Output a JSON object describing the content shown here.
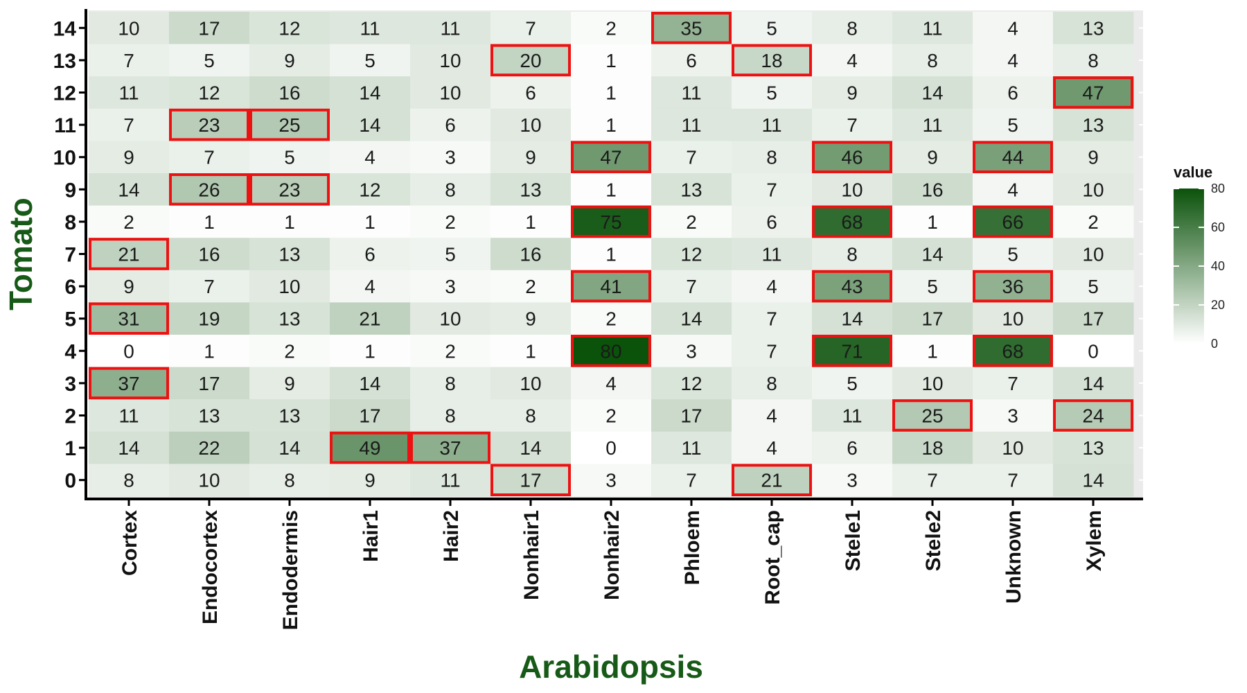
{
  "chart_data": {
    "type": "heatmap",
    "xlabel": "Arabidopsis",
    "ylabel": "Tomato",
    "x_categories": [
      "Cortex",
      "Endocortex",
      "Endodermis",
      "Hair1",
      "Hair2",
      "Nonhair1",
      "Nonhair2",
      "Phloem",
      "Root_cap",
      "Stele1",
      "Stele2",
      "Unknown",
      "Xylem"
    ],
    "y_categories": [
      "14",
      "13",
      "12",
      "11",
      "10",
      "9",
      "8",
      "7",
      "6",
      "5",
      "4",
      "3",
      "2",
      "1",
      "0"
    ],
    "values": [
      [
        10,
        17,
        12,
        11,
        11,
        7,
        2,
        35,
        5,
        8,
        11,
        4,
        13
      ],
      [
        7,
        5,
        9,
        5,
        10,
        20,
        1,
        6,
        18,
        4,
        8,
        4,
        8
      ],
      [
        11,
        12,
        16,
        14,
        10,
        6,
        1,
        11,
        5,
        9,
        14,
        6,
        47
      ],
      [
        7,
        23,
        25,
        14,
        6,
        10,
        1,
        11,
        11,
        7,
        11,
        5,
        13
      ],
      [
        9,
        7,
        5,
        4,
        3,
        9,
        47,
        7,
        8,
        46,
        9,
        44,
        9
      ],
      [
        14,
        26,
        23,
        12,
        8,
        13,
        1,
        13,
        7,
        10,
        16,
        4,
        10
      ],
      [
        2,
        1,
        1,
        1,
        2,
        1,
        75,
        2,
        6,
        68,
        1,
        66,
        2
      ],
      [
        21,
        16,
        13,
        6,
        5,
        16,
        1,
        12,
        11,
        8,
        14,
        5,
        10
      ],
      [
        9,
        7,
        10,
        4,
        3,
        2,
        41,
        7,
        4,
        43,
        5,
        36,
        5
      ],
      [
        31,
        19,
        13,
        21,
        10,
        9,
        2,
        14,
        7,
        14,
        17,
        10,
        17
      ],
      [
        0,
        1,
        2,
        1,
        2,
        1,
        80,
        3,
        7,
        71,
        1,
        68,
        0
      ],
      [
        37,
        17,
        9,
        14,
        8,
        10,
        4,
        12,
        8,
        5,
        10,
        7,
        14
      ],
      [
        11,
        13,
        13,
        17,
        8,
        8,
        2,
        17,
        4,
        11,
        25,
        3,
        24
      ],
      [
        14,
        22,
        14,
        49,
        37,
        14,
        0,
        11,
        4,
        6,
        18,
        10,
        13
      ],
      [
        8,
        10,
        8,
        9,
        11,
        17,
        3,
        7,
        21,
        3,
        7,
        7,
        14
      ]
    ],
    "highlighted": [
      [
        "14",
        "Phloem"
      ],
      [
        "13",
        "Nonhair1"
      ],
      [
        "13",
        "Root_cap"
      ],
      [
        "12",
        "Xylem"
      ],
      [
        "11",
        "Endocortex"
      ],
      [
        "11",
        "Endodermis"
      ],
      [
        "10",
        "Nonhair2"
      ],
      [
        "10",
        "Stele1"
      ],
      [
        "10",
        "Unknown"
      ],
      [
        "9",
        "Endocortex"
      ],
      [
        "9",
        "Endodermis"
      ],
      [
        "8",
        "Nonhair2"
      ],
      [
        "8",
        "Stele1"
      ],
      [
        "8",
        "Unknown"
      ],
      [
        "7",
        "Cortex"
      ],
      [
        "6",
        "Nonhair2"
      ],
      [
        "6",
        "Stele1"
      ],
      [
        "6",
        "Unknown"
      ],
      [
        "5",
        "Cortex"
      ],
      [
        "4",
        "Nonhair2"
      ],
      [
        "4",
        "Stele1"
      ],
      [
        "4",
        "Unknown"
      ],
      [
        "3",
        "Cortex"
      ],
      [
        "2",
        "Stele2"
      ],
      [
        "2",
        "Xylem"
      ],
      [
        "1",
        "Hair1"
      ],
      [
        "1",
        "Hair2"
      ],
      [
        "0",
        "Nonhair1"
      ],
      [
        "0",
        "Root_cap"
      ]
    ],
    "color_range": [
      0,
      80
    ],
    "color_low": "#ffffff",
    "color_high": "#0b520b",
    "highlight_color": "#ee1111",
    "axis_title_color": "#175a17",
    "panel_background": "#ebebeb",
    "legend": {
      "title": "value",
      "ticks": [
        0,
        20,
        40,
        60,
        80
      ],
      "position": "right"
    },
    "grid": false
  }
}
